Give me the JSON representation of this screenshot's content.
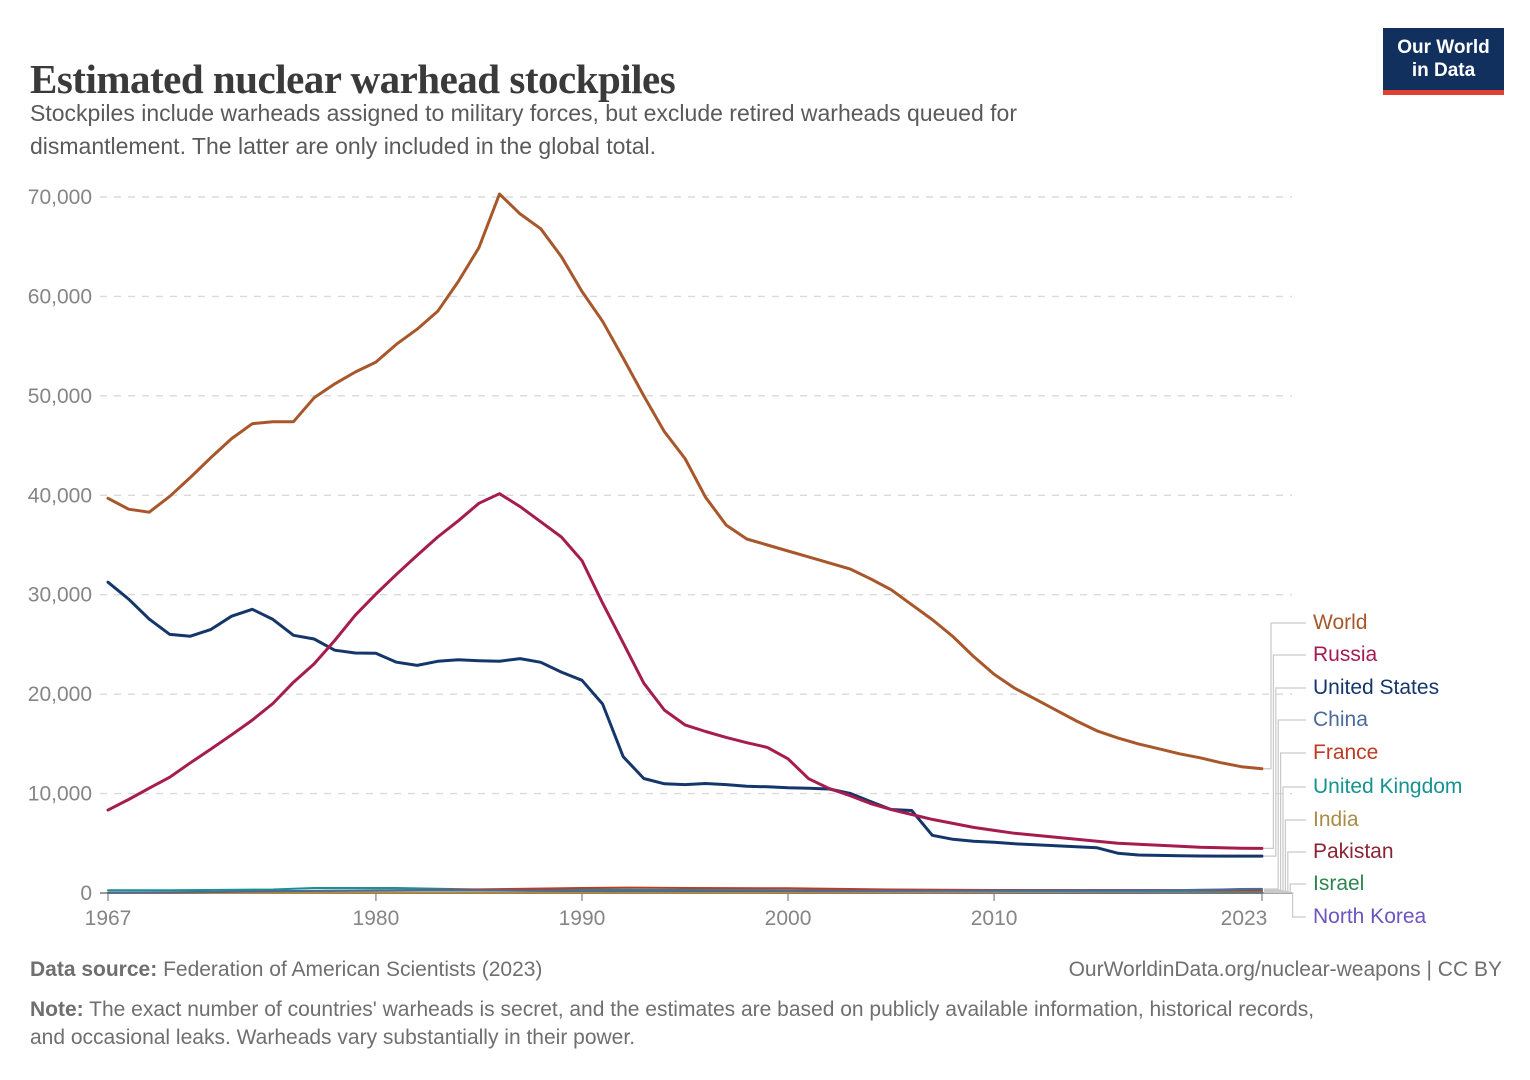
{
  "header": {
    "title": "Estimated nuclear warhead stockpiles",
    "subtitle_lines": [
      "Stockpiles include warheads assigned to military forces, but exclude retired warheads queued for",
      "dismantlement. The latter are only included in the global total."
    ]
  },
  "logo": {
    "line1": "Our World",
    "line2": "in Data",
    "bg_color": "#12305e",
    "bar_color": "#e0402f"
  },
  "chart_data": {
    "type": "line",
    "title": "Estimated nuclear warhead stockpiles",
    "xlabel": "",
    "ylabel": "",
    "xlim": [
      1967,
      2023
    ],
    "ylim": [
      0,
      70000
    ],
    "grid": "horizontal-dashed",
    "legend_position": "right",
    "x_ticks": [
      1967,
      1980,
      1990,
      2000,
      2010,
      2023
    ],
    "y_ticks": [
      0,
      10000,
      20000,
      30000,
      40000,
      50000,
      60000,
      70000
    ],
    "y_tick_labels": [
      "0",
      "10,000",
      "20,000",
      "30,000",
      "40,000",
      "50,000",
      "60,000",
      "70,000"
    ],
    "series": [
      {
        "name": "World",
        "color": "#A8572B",
        "points": [
          [
            1967,
            39700
          ],
          [
            1968,
            38600
          ],
          [
            1969,
            38300
          ],
          [
            1970,
            39900
          ],
          [
            1971,
            41800
          ],
          [
            1972,
            43800
          ],
          [
            1973,
            45700
          ],
          [
            1974,
            47200
          ],
          [
            1975,
            47400
          ],
          [
            1976,
            47400
          ],
          [
            1977,
            49800
          ],
          [
            1978,
            51200
          ],
          [
            1979,
            52400
          ],
          [
            1980,
            53400
          ],
          [
            1981,
            55200
          ],
          [
            1982,
            56700
          ],
          [
            1983,
            58500
          ],
          [
            1984,
            61500
          ],
          [
            1985,
            64900
          ],
          [
            1986,
            70300
          ],
          [
            1987,
            68300
          ],
          [
            1988,
            66800
          ],
          [
            1989,
            64000
          ],
          [
            1990,
            60500
          ],
          [
            1991,
            57500
          ],
          [
            1992,
            53800
          ],
          [
            1993,
            50000
          ],
          [
            1994,
            46400
          ],
          [
            1995,
            43700
          ],
          [
            1996,
            39800
          ],
          [
            1997,
            37000
          ],
          [
            1998,
            35600
          ],
          [
            1999,
            35000
          ],
          [
            2000,
            34400
          ],
          [
            2001,
            33800
          ],
          [
            2002,
            33200
          ],
          [
            2003,
            32600
          ],
          [
            2004,
            31600
          ],
          [
            2005,
            30500
          ],
          [
            2006,
            29000
          ],
          [
            2007,
            27500
          ],
          [
            2008,
            25800
          ],
          [
            2009,
            23800
          ],
          [
            2010,
            22000
          ],
          [
            2011,
            20600
          ],
          [
            2012,
            19500
          ],
          [
            2013,
            18400
          ],
          [
            2014,
            17300
          ],
          [
            2015,
            16300
          ],
          [
            2016,
            15600
          ],
          [
            2017,
            15000
          ],
          [
            2018,
            14500
          ],
          [
            2019,
            14000
          ],
          [
            2020,
            13600
          ],
          [
            2021,
            13100
          ],
          [
            2022,
            12700
          ],
          [
            2023,
            12500
          ]
        ]
      },
      {
        "name": "Russia",
        "color": "#A51C4E",
        "points": [
          [
            1967,
            8339
          ],
          [
            1968,
            9399
          ],
          [
            1969,
            10538
          ],
          [
            1970,
            11643
          ],
          [
            1971,
            13092
          ],
          [
            1972,
            14478
          ],
          [
            1973,
            15915
          ],
          [
            1974,
            17385
          ],
          [
            1975,
            19055
          ],
          [
            1976,
            21205
          ],
          [
            1977,
            23044
          ],
          [
            1978,
            25393
          ],
          [
            1979,
            27935
          ],
          [
            1980,
            30062
          ],
          [
            1981,
            32049
          ],
          [
            1982,
            33952
          ],
          [
            1983,
            35804
          ],
          [
            1984,
            37431
          ],
          [
            1985,
            39197
          ],
          [
            1986,
            40159
          ],
          [
            1987,
            38859
          ],
          [
            1988,
            37333
          ],
          [
            1989,
            35805
          ],
          [
            1990,
            33417
          ],
          [
            1991,
            29154
          ],
          [
            1992,
            25155
          ],
          [
            1993,
            21101
          ],
          [
            1994,
            18399
          ],
          [
            1995,
            16909
          ],
          [
            1996,
            16238
          ],
          [
            1997,
            15653
          ],
          [
            1998,
            15119
          ],
          [
            1999,
            14640
          ],
          [
            2000,
            13500
          ],
          [
            2001,
            11500
          ],
          [
            2002,
            10500
          ],
          [
            2003,
            9800
          ],
          [
            2004,
            9000
          ],
          [
            2005,
            8400
          ],
          [
            2006,
            7900
          ],
          [
            2007,
            7400
          ],
          [
            2008,
            7000
          ],
          [
            2009,
            6600
          ],
          [
            2010,
            6300
          ],
          [
            2011,
            6000
          ],
          [
            2012,
            5800
          ],
          [
            2013,
            5600
          ],
          [
            2014,
            5400
          ],
          [
            2015,
            5200
          ],
          [
            2016,
            5000
          ],
          [
            2017,
            4900
          ],
          [
            2018,
            4800
          ],
          [
            2019,
            4700
          ],
          [
            2020,
            4600
          ],
          [
            2021,
            4550
          ],
          [
            2022,
            4500
          ],
          [
            2023,
            4489
          ]
        ]
      },
      {
        "name": "United States",
        "color": "#15366B",
        "points": [
          [
            1967,
            31255
          ],
          [
            1968,
            29561
          ],
          [
            1969,
            27552
          ],
          [
            1970,
            26008
          ],
          [
            1971,
            25830
          ],
          [
            1972,
            26516
          ],
          [
            1973,
            27835
          ],
          [
            1974,
            28537
          ],
          [
            1975,
            27519
          ],
          [
            1976,
            25914
          ],
          [
            1977,
            25542
          ],
          [
            1978,
            24418
          ],
          [
            1979,
            24138
          ],
          [
            1980,
            24104
          ],
          [
            1981,
            23208
          ],
          [
            1982,
            22886
          ],
          [
            1983,
            23305
          ],
          [
            1984,
            23459
          ],
          [
            1985,
            23368
          ],
          [
            1986,
            23317
          ],
          [
            1987,
            23575
          ],
          [
            1988,
            23205
          ],
          [
            1989,
            22217
          ],
          [
            1990,
            21392
          ],
          [
            1991,
            19008
          ],
          [
            1992,
            13708
          ],
          [
            1993,
            11511
          ],
          [
            1994,
            10979
          ],
          [
            1995,
            10904
          ],
          [
            1996,
            11011
          ],
          [
            1997,
            10903
          ],
          [
            1998,
            10732
          ],
          [
            1999,
            10685
          ],
          [
            2000,
            10577
          ],
          [
            2001,
            10526
          ],
          [
            2002,
            10457
          ],
          [
            2003,
            10027
          ],
          [
            2004,
            9200
          ],
          [
            2005,
            8400
          ],
          [
            2006,
            8300
          ],
          [
            2007,
            5800
          ],
          [
            2008,
            5400
          ],
          [
            2009,
            5200
          ],
          [
            2010,
            5100
          ],
          [
            2011,
            4950
          ],
          [
            2012,
            4850
          ],
          [
            2013,
            4750
          ],
          [
            2014,
            4650
          ],
          [
            2015,
            4550
          ],
          [
            2016,
            4000
          ],
          [
            2017,
            3822
          ],
          [
            2018,
            3785
          ],
          [
            2019,
            3750
          ],
          [
            2020,
            3720
          ],
          [
            2021,
            3710
          ],
          [
            2022,
            3708
          ],
          [
            2023,
            3708
          ]
        ]
      },
      {
        "name": "China",
        "color": "#4C6A9C",
        "points": [
          [
            1967,
            25
          ],
          [
            1970,
            75
          ],
          [
            1975,
            180
          ],
          [
            1980,
            280
          ],
          [
            1985,
            280
          ],
          [
            1990,
            232
          ],
          [
            1995,
            234
          ],
          [
            2000,
            232
          ],
          [
            2005,
            235
          ],
          [
            2010,
            240
          ],
          [
            2015,
            260
          ],
          [
            2018,
            280
          ],
          [
            2019,
            290
          ],
          [
            2020,
            320
          ],
          [
            2021,
            350
          ],
          [
            2022,
            400
          ],
          [
            2023,
            410
          ]
        ]
      },
      {
        "name": "France",
        "color": "#BF3B21",
        "points": [
          [
            1967,
            36
          ],
          [
            1970,
            36
          ],
          [
            1975,
            188
          ],
          [
            1980,
            250
          ],
          [
            1985,
            360
          ],
          [
            1990,
            505
          ],
          [
            1992,
            540
          ],
          [
            1995,
            500
          ],
          [
            2000,
            470
          ],
          [
            2005,
            350
          ],
          [
            2010,
            300
          ],
          [
            2015,
            300
          ],
          [
            2020,
            290
          ],
          [
            2023,
            290
          ]
        ]
      },
      {
        "name": "United Kingdom",
        "color": "#169292",
        "points": [
          [
            1967,
            270
          ],
          [
            1970,
            280
          ],
          [
            1975,
            350
          ],
          [
            1977,
            500
          ],
          [
            1981,
            500
          ],
          [
            1985,
            350
          ],
          [
            1990,
            350
          ],
          [
            1995,
            300
          ],
          [
            2000,
            280
          ],
          [
            2005,
            280
          ],
          [
            2010,
            225
          ],
          [
            2015,
            215
          ],
          [
            2020,
            225
          ],
          [
            2023,
            225
          ]
        ]
      },
      {
        "name": "India",
        "color": "#A98C45",
        "points": [
          [
            1967,
            0
          ],
          [
            1974,
            1
          ],
          [
            1980,
            8
          ],
          [
            1985,
            12
          ],
          [
            1990,
            10
          ],
          [
            1995,
            14
          ],
          [
            2000,
            20
          ],
          [
            2005,
            44
          ],
          [
            2010,
            80
          ],
          [
            2015,
            110
          ],
          [
            2020,
            150
          ],
          [
            2023,
            164
          ]
        ]
      },
      {
        "name": "Pakistan",
        "color": "#8C2333",
        "points": [
          [
            1967,
            0
          ],
          [
            1986,
            0
          ],
          [
            1987,
            1
          ],
          [
            1990,
            6
          ],
          [
            1995,
            16
          ],
          [
            2000,
            30
          ],
          [
            2005,
            50
          ],
          [
            2010,
            90
          ],
          [
            2015,
            120
          ],
          [
            2020,
            160
          ],
          [
            2023,
            170
          ]
        ]
      },
      {
        "name": "Israel",
        "color": "#2C8551",
        "points": [
          [
            1967,
            2
          ],
          [
            1970,
            8
          ],
          [
            1975,
            20
          ],
          [
            1980,
            31
          ],
          [
            1985,
            42
          ],
          [
            1990,
            53
          ],
          [
            1995,
            63
          ],
          [
            2000,
            72
          ],
          [
            2005,
            80
          ],
          [
            2010,
            80
          ],
          [
            2015,
            85
          ],
          [
            2020,
            90
          ],
          [
            2023,
            90
          ]
        ]
      },
      {
        "name": "North Korea",
        "color": "#6D54C1",
        "points": [
          [
            1967,
            0
          ],
          [
            2005,
            0
          ],
          [
            2006,
            1
          ],
          [
            2010,
            8
          ],
          [
            2015,
            15
          ],
          [
            2018,
            20
          ],
          [
            2020,
            30
          ],
          [
            2023,
            30
          ]
        ]
      }
    ]
  },
  "footer": {
    "data_source_label": "Data source:",
    "data_source_text": "Federation of American Scientists (2023)",
    "attribution": "OurWorldinData.org/nuclear-weapons | CC BY",
    "note_label": "Note:",
    "note_lines": [
      "The exact number of countries' warheads is secret, and the estimates are based on publicly available information, historical records,",
      "and occasional leaks. Warheads vary substantially in their power."
    ]
  }
}
